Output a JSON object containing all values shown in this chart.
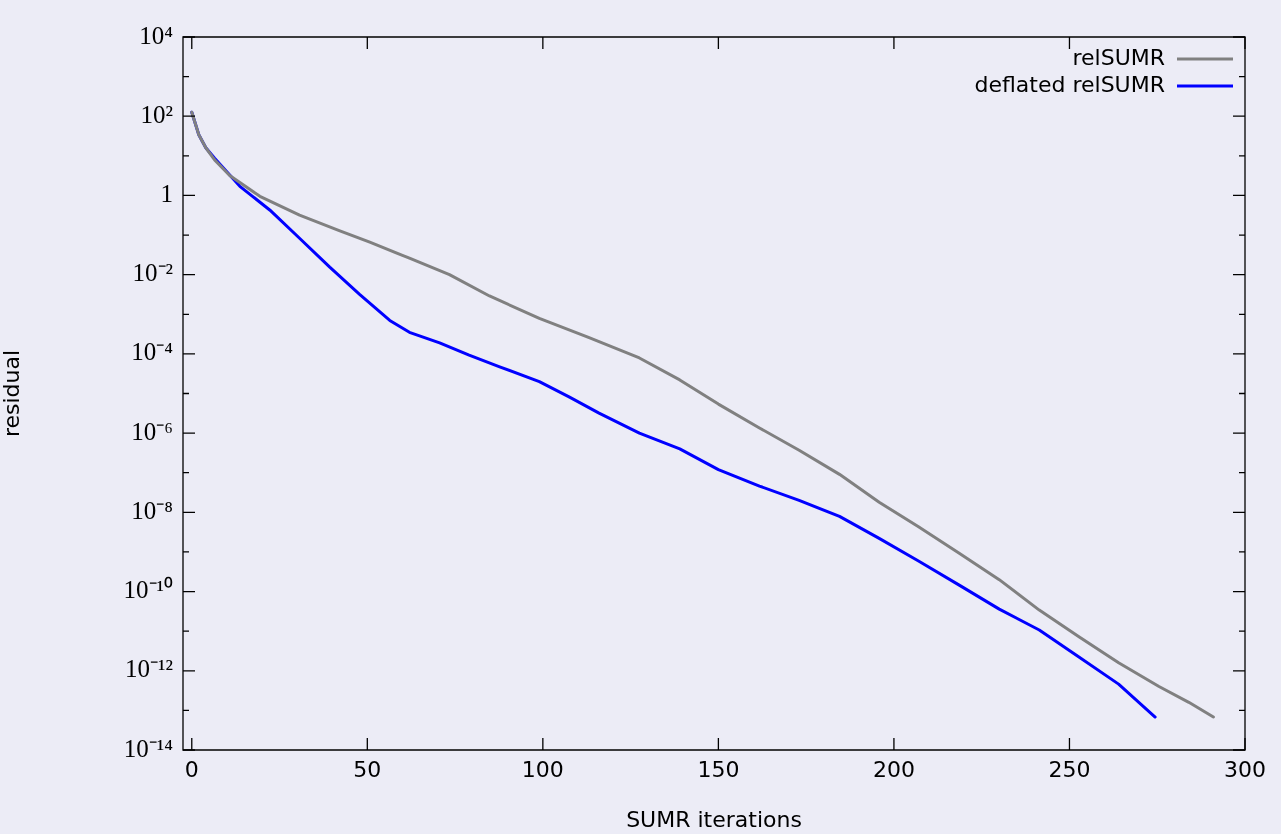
{
  "chart_data": {
    "type": "line",
    "xlabel": "SUMR iterations",
    "ylabel": "residual",
    "log": "y",
    "grid": false,
    "legend": "top right",
    "marker": "none",
    "line_style": "solid",
    "xlim": [
      -2.5,
      300
    ],
    "xticks": [
      0,
      50,
      100,
      150,
      200,
      250,
      300
    ],
    "ylim": [
      1e-14,
      10000.0
    ],
    "yticks": [
      {
        "value": 10000.0,
        "label": "10⁴"
      },
      {
        "value": 1000.0,
        "label": null
      },
      {
        "value": 100.0,
        "label": "10²"
      },
      {
        "value": 10,
        "label": null
      },
      {
        "value": 1,
        "label": "1"
      },
      {
        "value": 0.1,
        "label": null
      },
      {
        "value": 0.01,
        "label": "10⁻²"
      },
      {
        "value": 0.001,
        "label": null
      },
      {
        "value": 0.0001,
        "label": "10⁻⁴"
      },
      {
        "value": 1e-05,
        "label": null
      },
      {
        "value": 1e-06,
        "label": "10⁻⁶"
      },
      {
        "value": 1e-07,
        "label": null
      },
      {
        "value": 1e-08,
        "label": "10⁻⁸"
      },
      {
        "value": 1e-09,
        "label": null
      },
      {
        "value": 1e-10,
        "label": "10⁻¹⁰"
      },
      {
        "value": 1e-11,
        "label": null
      },
      {
        "value": 1e-12,
        "label": "10⁻¹²"
      },
      {
        "value": 1e-13,
        "label": null
      },
      {
        "value": 1e-14,
        "label": "10⁻¹⁴"
      }
    ],
    "series": [
      {
        "name": "relSUMR",
        "color": "#808080",
        "x": [
          0,
          2,
          4,
          6.5,
          10.8,
          19.4,
          30.7,
          42,
          50.7,
          62,
          73.4,
          84.8,
          99,
          113,
          127.5,
          139,
          150,
          161.7,
          173,
          184.5,
          195.8,
          207,
          218.6,
          230,
          241.4,
          252.8,
          264,
          275.5,
          284,
          291
        ],
        "values": [
          126,
          34,
          16,
          7.9,
          3.2,
          0.95,
          0.32,
          0.13,
          0.066,
          0.026,
          0.01,
          0.0029,
          0.00079,
          0.00026,
          7.9e-05,
          2.2e-05,
          5.4e-06,
          1.35e-06,
          3.7e-07,
          9.1e-08,
          1.8e-08,
          4.3e-09,
          9.3e-10,
          2e-10,
          3.4e-11,
          7.1e-12,
          1.6e-12,
          4e-13,
          1.6e-13,
          6.8e-14
        ]
      },
      {
        "name": "deflated relSUMR",
        "color": "#0000ff",
        "x": [
          0,
          2,
          4,
          6.5,
          13.7,
          22.2,
          30.7,
          39.3,
          47.8,
          56.4,
          62,
          70.6,
          79,
          87.7,
          99,
          107.6,
          116,
          127.5,
          139,
          150,
          161.7,
          173,
          184.5,
          195.8,
          207,
          218.6,
          230,
          241.4,
          252.8,
          264,
          274.4
        ],
        "values": [
          126,
          34,
          16,
          8.7,
          1.7,
          0.43,
          0.083,
          0.0155,
          0.0032,
          0.0007,
          0.00035,
          0.00019,
          9.3e-05,
          4.7e-05,
          2e-05,
          8.1e-06,
          3.2e-06,
          1e-06,
          4e-07,
          1.2e-07,
          4.6e-08,
          2e-08,
          7.9e-09,
          2.2e-09,
          5.9e-10,
          1.45e-10,
          3.6e-11,
          1.07e-11,
          2.2e-12,
          4.6e-13,
          6.8e-14
        ]
      }
    ]
  }
}
